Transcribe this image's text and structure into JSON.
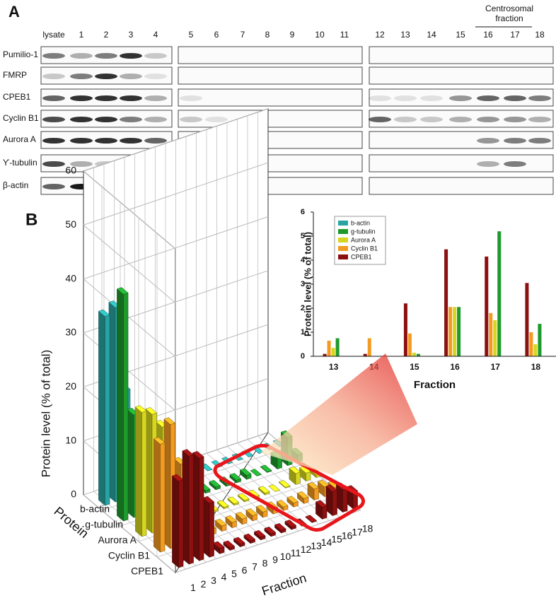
{
  "panel_a": {
    "label": "A",
    "lanes": [
      "lysate",
      1,
      2,
      3,
      4,
      5,
      6,
      7,
      8,
      9,
      10,
      11,
      12,
      13,
      14,
      15,
      16,
      17,
      18
    ],
    "proteins": [
      "Pumilio-1",
      "FMRP",
      "CPEB1",
      "Cyclin B1",
      "Aurora A",
      "ϒ-tubulin",
      "β-actin"
    ],
    "annotation": [
      "Centrosomal",
      "fraction"
    ]
  },
  "panel_b_label": "B",
  "chart_data": [
    {
      "type": "bar3d",
      "y_label": "Protein level (% of total)",
      "z_label": "Protein",
      "x_label": "Fraction",
      "categories": [
        1,
        2,
        3,
        4,
        5,
        6,
        7,
        8,
        9,
        10,
        11,
        12,
        13,
        14,
        15,
        16,
        17,
        18
      ],
      "ylim": [
        0,
        60
      ],
      "yticks": [
        0,
        10,
        20,
        30,
        40,
        50,
        60
      ],
      "grid": true,
      "series": [
        {
          "name": "b-actin",
          "color": "#2aa3a3",
          "values": [
            35,
            36,
            20,
            1,
            0,
            0,
            0,
            0,
            0,
            0,
            0,
            0,
            0,
            0,
            0,
            0,
            0,
            0
          ]
        },
        {
          "name": "g-tubulin",
          "color": "#1e9a2c",
          "values": [
            42,
            19,
            15,
            5,
            0.5,
            0.5,
            0.5,
            0.5,
            0.5,
            0.5,
            0.5,
            0.5,
            0.75,
            0,
            0.1,
            2.05,
            5.2,
            1.35
          ]
        },
        {
          "name": "Aurora A",
          "color": "#d6d620",
          "values": [
            23,
            22,
            19,
            8,
            0.3,
            0.3,
            0.3,
            0.3,
            0.3,
            0.3,
            0.3,
            0.3,
            0.35,
            0,
            0.15,
            2.05,
            1.5,
            0.5
          ]
        },
        {
          "name": "Cyclin B1",
          "color": "#f39a20",
          "values": [
            20,
            23,
            15,
            8,
            1,
            1,
            1,
            1,
            1,
            1,
            1,
            1,
            0.65,
            0.75,
            0.95,
            2.05,
            1.8,
            1
          ]
        },
        {
          "name": "CPEB1",
          "color": "#8b1010",
          "values": [
            16,
            20,
            19,
            10,
            1,
            0.5,
            0.5,
            0.5,
            0.5,
            0.5,
            0.5,
            0.5,
            0.1,
            0.1,
            2.2,
            4.45,
            4.15,
            3.05
          ]
        }
      ]
    },
    {
      "type": "bar",
      "x_label": "Fraction",
      "y_label": "Protein level (% of total)",
      "categories": [
        13,
        14,
        15,
        16,
        17,
        18
      ],
      "ylim": [
        0,
        6
      ],
      "yticks": [
        0,
        1,
        2,
        3,
        4,
        5,
        6
      ],
      "legend": "upper left",
      "series": [
        {
          "name": "b-actin",
          "color": "#2aa3a3",
          "values": [
            0,
            0,
            0,
            0,
            0,
            0
          ]
        },
        {
          "name": "g-tubulin",
          "color": "#1e9a2c",
          "values": [
            0.75,
            0,
            0.1,
            2.05,
            5.2,
            1.35
          ]
        },
        {
          "name": "Aurora A",
          "color": "#d6d620",
          "values": [
            0.35,
            0,
            0.15,
            2.05,
            1.5,
            0.5
          ]
        },
        {
          "name": "Cyclin B1",
          "color": "#f39a20",
          "values": [
            0.65,
            0.75,
            0.95,
            2.05,
            1.8,
            1
          ]
        },
        {
          "name": "CPEB1",
          "color": "#8b1010",
          "values": [
            0.1,
            0.1,
            2.2,
            4.45,
            4.15,
            3.05
          ]
        }
      ]
    }
  ]
}
